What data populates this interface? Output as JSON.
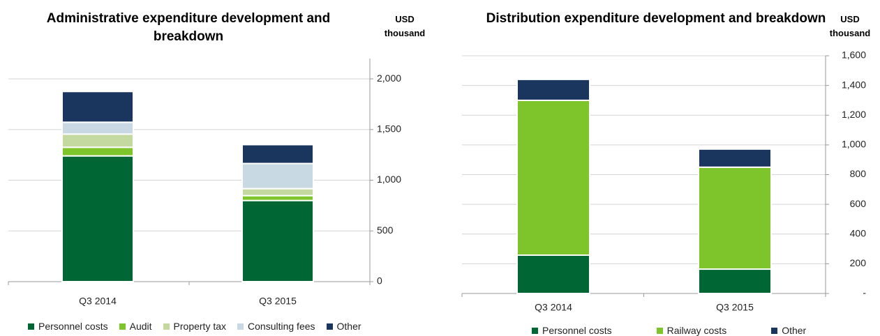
{
  "chart_data": [
    {
      "type": "bar",
      "stacked": true,
      "title": "Administrative expenditure development and breakdown",
      "y_axis_label": "USD thousand",
      "categories": [
        "Q3 2014",
        "Q3 2015"
      ],
      "series": [
        {
          "name": "Personnel costs",
          "color": "#006633",
          "values": [
            1240,
            800
          ]
        },
        {
          "name": "Audit",
          "color": "#7dc52a",
          "values": [
            85,
            48
          ]
        },
        {
          "name": "Property tax",
          "color": "#c3d9a0",
          "values": [
            130,
            69
          ]
        },
        {
          "name": "Consulting fees",
          "color": "#c9d9e3",
          "values": [
            117,
            248
          ]
        },
        {
          "name": "Other",
          "color": "#1a355e",
          "values": [
            303,
            186
          ]
        }
      ],
      "ylim": [
        0,
        2200
      ],
      "yticks": [
        0,
        500,
        {
          "value": 1000,
          "label": "1,000"
        },
        {
          "value": 1500,
          "label": "1,500"
        },
        {
          "value": 2000,
          "label": "2,000"
        }
      ],
      "grid": true,
      "legend": "bottom"
    },
    {
      "type": "bar",
      "stacked": true,
      "title": "Distribution expenditure development and breakdown",
      "y_axis_label": "USD thousand",
      "categories": [
        "Q3 2014",
        "Q3 2015"
      ],
      "series": [
        {
          "name": "Personnel costs",
          "color": "#006633",
          "values": [
            258,
            164
          ]
        },
        {
          "name": "Railway costs",
          "color": "#7dc52a",
          "values": [
            1042,
            686
          ]
        },
        {
          "name": "Other",
          "color": "#1a355e",
          "values": [
            141,
            122
          ]
        }
      ],
      "ylim": [
        0,
        1600
      ],
      "yticks": [
        {
          "value": 0,
          "label": "-"
        },
        200,
        400,
        600,
        800,
        {
          "value": 1000,
          "label": "1,000"
        },
        {
          "value": 1200,
          "label": "1,200"
        },
        {
          "value": 1400,
          "label": "1,400"
        },
        {
          "value": 1600,
          "label": "1,600"
        }
      ],
      "grid": true,
      "legend": "bottom"
    }
  ]
}
